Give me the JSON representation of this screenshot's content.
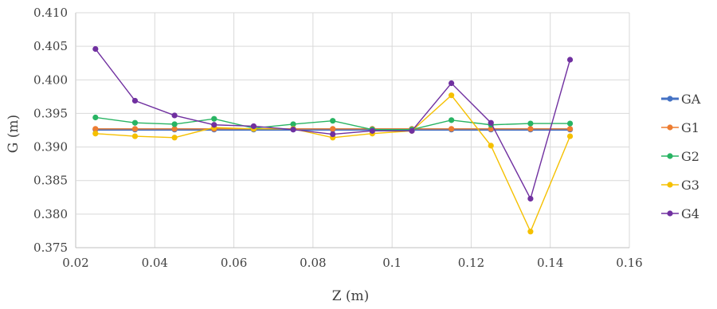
{
  "chart_data": {
    "type": "line",
    "title": "",
    "xlabel": "Z (m)",
    "ylabel": "G (m)",
    "xlim": [
      0.02,
      0.16
    ],
    "ylim": [
      0.375,
      0.41
    ],
    "xticks": [
      "0.02",
      "0.04",
      "0.06",
      "0.08",
      "0.1",
      "0.12",
      "0.14",
      "0.16"
    ],
    "yticks": [
      "0.375",
      "0.380",
      "0.385",
      "0.390",
      "0.395",
      "0.400",
      "0.405",
      "0.410"
    ],
    "grid": true,
    "legend_position": "right",
    "x": [
      0.025,
      0.035,
      0.045,
      0.055,
      0.065,
      0.075,
      0.085,
      0.095,
      0.105,
      0.115,
      0.125,
      0.135,
      0.145
    ],
    "series": [
      {
        "name": "GA",
        "color": "#4472C4",
        "values": [
          0.3926,
          0.3926,
          0.3926,
          0.3926,
          0.3926,
          0.3926,
          0.3926,
          0.3926,
          0.3926,
          0.3926,
          0.3926,
          0.3926,
          0.3926
        ]
      },
      {
        "name": "G1",
        "color": "#ED7D31",
        "values": [
          0.3927,
          0.3927,
          0.3927,
          0.3927,
          0.3927,
          0.3927,
          0.3927,
          0.3927,
          0.3927,
          0.3927,
          0.3927,
          0.3927,
          0.3927
        ]
      },
      {
        "name": "G2",
        "color": "#28B463",
        "values": [
          0.3944,
          0.3936,
          0.3934,
          0.3942,
          0.3928,
          0.3934,
          0.3939,
          0.3926,
          0.3926,
          0.394,
          0.3933,
          0.3935,
          0.3935
        ]
      },
      {
        "name": "G3",
        "color": "#F5C000",
        "values": [
          0.392,
          0.3916,
          0.3914,
          0.3929,
          0.3927,
          0.3927,
          0.3914,
          0.392,
          0.3924,
          0.3977,
          0.3902,
          0.3774,
          0.3916
        ]
      },
      {
        "name": "G4",
        "color": "#7030A0",
        "values": [
          0.4046,
          0.3969,
          0.3947,
          0.3933,
          0.3931,
          0.3926,
          0.3919,
          0.3924,
          0.3924,
          0.3995,
          0.3936,
          0.3823,
          0.403
        ]
      }
    ]
  }
}
